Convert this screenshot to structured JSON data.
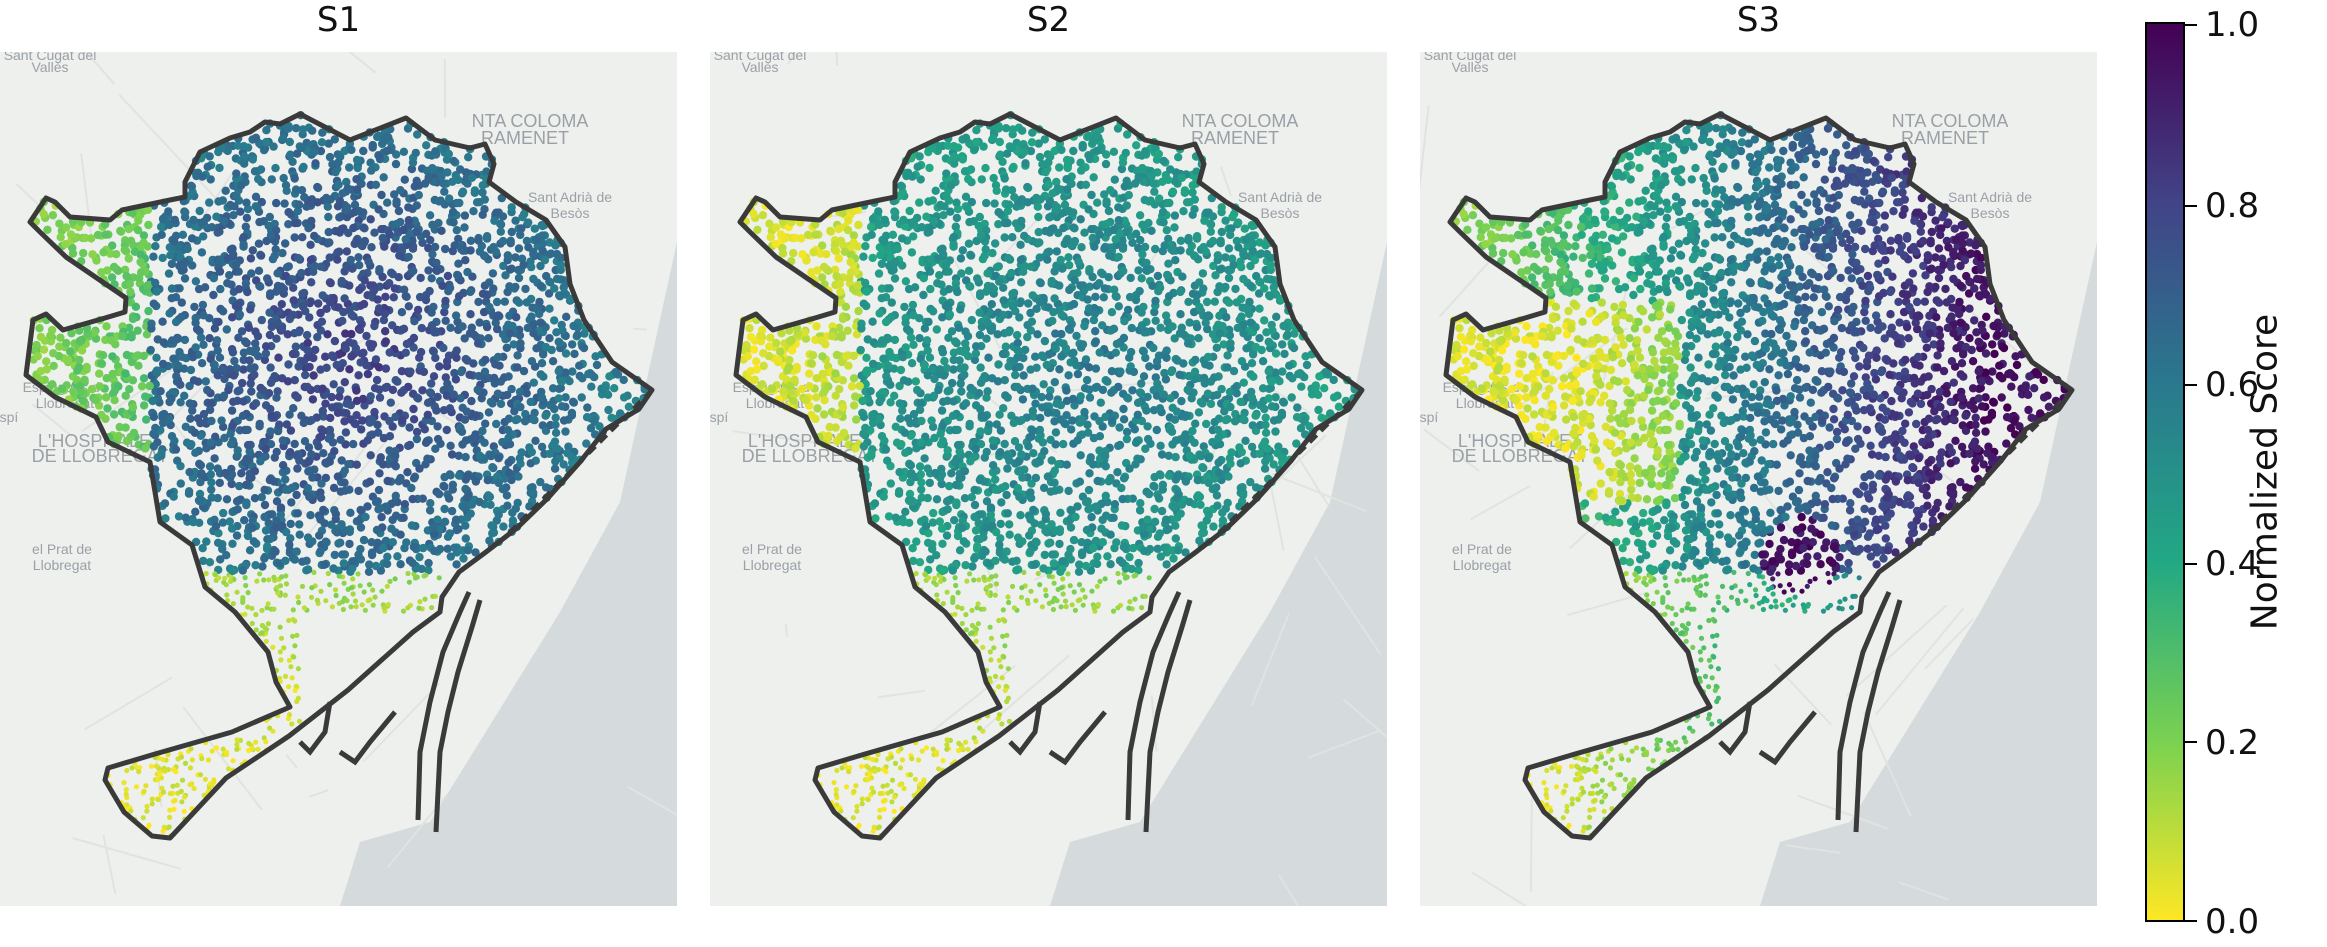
{
  "panels": [
    {
      "title": "S1",
      "scheme": "high"
    },
    {
      "title": "S2",
      "scheme": "mid"
    },
    {
      "title": "S3",
      "scheme": "west-low"
    }
  ],
  "map_labels": [
    "Sant Cugat del",
    "Vallès",
    "NTA COLOMA",
    "RAMENET",
    "Sant Adrià de",
    "Besòs",
    "Esplugues de",
    "Llobregat",
    "Despí",
    "L'HOSPITALET",
    "DE LLOBREGAT",
    "el Prat de",
    "Llobregat"
  ],
  "colorbar": {
    "label": "Normalized Score",
    "ticks": [
      "0.0",
      "0.2",
      "0.4",
      "0.6",
      "0.8",
      "1.0"
    ],
    "min": 0,
    "max": 1,
    "colormap": "viridis"
  },
  "colors": {
    "boundary": "#3a3a3a",
    "sea": "#d5dadc",
    "land": "#eef0ee"
  }
}
